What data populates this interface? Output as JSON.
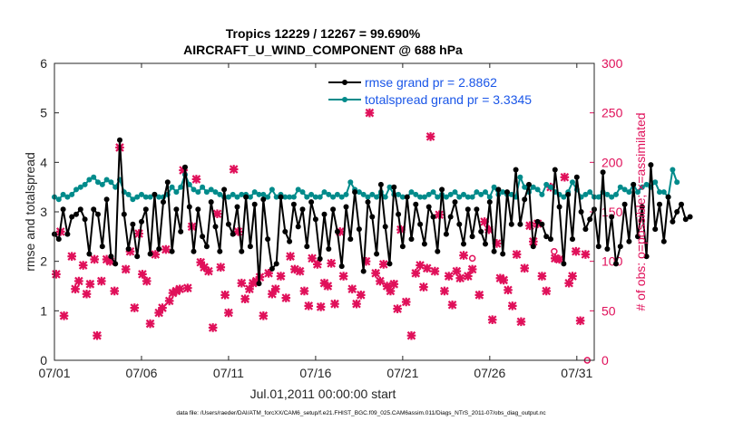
{
  "chart_data": {
    "type": "line",
    "title_line1": "Tropics 12229 / 12267 = 99.690%",
    "title_line2": "AIRCRAFT_U_WIND_COMPONENT @ 688 hPa",
    "xlabel": "Jul.01,2011 00:00:00 start",
    "ylabel_left": "rmse and totalspread",
    "ylabel_right": "# of obs: o=possible; ×=assimilated",
    "footer": "data file: /Users/raeder/DAI/ATM_forcXX/CAM6_setup/f.e21.FHIST_BGC.f09_025.CAM6assim.011/Diags_NTrS_2011-07/obs_diag_output.nc",
    "xlim": [
      1,
      32
    ],
    "ylim_left": [
      0,
      6
    ],
    "ylim_right": [
      0,
      300
    ],
    "x_ticks": [
      {
        "value": 1,
        "label": "07/01"
      },
      {
        "value": 6,
        "label": "07/06"
      },
      {
        "value": 11,
        "label": "07/11"
      },
      {
        "value": 16,
        "label": "07/16"
      },
      {
        "value": 21,
        "label": "07/21"
      },
      {
        "value": 26,
        "label": "07/26"
      },
      {
        "value": 31,
        "label": "07/31"
      }
    ],
    "y_ticks_left": [
      0,
      1,
      2,
      3,
      4,
      5,
      6
    ],
    "y_ticks_right": [
      0,
      50,
      100,
      150,
      200,
      250,
      300
    ],
    "legend_position": "top-right",
    "colors": {
      "rmse": "#000000",
      "spread": "#008b8b",
      "obs": "#e0105a",
      "legend_text": "#1a56e8"
    },
    "series": [
      {
        "name": "rmse grand pr = 2.8862",
        "axis": "left",
        "marker": "circle",
        "color": "#000000",
        "x_start": 1,
        "x_step": 0.25,
        "values": [
          2.55,
          2.45,
          3.05,
          2.55,
          2.9,
          2.95,
          3.05,
          2.85,
          2.15,
          3.05,
          2.95,
          2.3,
          3.25,
          2.1,
          1.95,
          4.45,
          2.95,
          2.25,
          2.75,
          2.1,
          2.8,
          3.05,
          2.15,
          3.35,
          2.25,
          3.2,
          3.6,
          2.2,
          3.05,
          2.6,
          3.9,
          3.1,
          2.2,
          3.05,
          2.5,
          2.3,
          3.2,
          2.7,
          2.2,
          3.45,
          2.75,
          2.55,
          3.1,
          2.2,
          3.3,
          2.3,
          3.15,
          1.55,
          3.25,
          2.45,
          1.85,
          1.95,
          3.3,
          2.6,
          2.4,
          3.15,
          2.7,
          3.05,
          2.3,
          3.2,
          2.85,
          2.05,
          2.95,
          2.25,
          3.05,
          2.6,
          1.9,
          3.1,
          2.45,
          3.4,
          2.65,
          1.8,
          3.2,
          2.9,
          2.15,
          3.55,
          2.7,
          1.95,
          3.5,
          2.95,
          2.3,
          3.3,
          2.45,
          3.15,
          2.75,
          2.35,
          3.1,
          2.9,
          2.2,
          3.45,
          2.55,
          2.9,
          3.2,
          2.75,
          2.35,
          3.05,
          2.5,
          3.05,
          2.6,
          2.35,
          3.2,
          2.2,
          3.45,
          2.15,
          3.4,
          2.75,
          3.85,
          2.75,
          3.25,
          3.55,
          2.3,
          2.8,
          2.75,
          2.5,
          2.45,
          3.85,
          3.1,
          1.95,
          3.35,
          2.45,
          3.7,
          3.0,
          2.65,
          2.85,
          3.05,
          2.3,
          3.8,
          2.25,
          2.9,
          1.95,
          2.3,
          3.15,
          2.4,
          3.55,
          2.5,
          3.1,
          2.1,
          3.95,
          2.65,
          3.15,
          2.4,
          3.3,
          2.8,
          3.0,
          3.15,
          2.85,
          2.9
        ]
      },
      {
        "name": "totalspread grand pr = 3.3345",
        "axis": "left",
        "marker": "circle",
        "color": "#008b8b",
        "x_start": 1,
        "x_step": 0.25,
        "values": [
          3.3,
          3.25,
          3.35,
          3.3,
          3.35,
          3.45,
          3.5,
          3.55,
          3.65,
          3.7,
          3.6,
          3.55,
          3.65,
          3.6,
          3.5,
          3.65,
          3.4,
          3.35,
          3.25,
          3.3,
          3.35,
          3.3,
          3.3,
          3.35,
          3.3,
          3.3,
          3.35,
          3.5,
          3.4,
          3.5,
          3.75,
          3.55,
          3.45,
          3.4,
          3.5,
          3.4,
          3.45,
          3.4,
          3.35,
          3.3,
          3.3,
          3.35,
          3.3,
          3.35,
          3.35,
          3.3,
          3.4,
          3.35,
          3.35,
          3.3,
          3.45,
          3.3,
          3.35,
          3.3,
          3.3,
          3.3,
          3.45,
          3.4,
          3.3,
          3.35,
          3.3,
          3.3,
          3.4,
          3.35,
          3.3,
          3.35,
          3.3,
          3.35,
          3.6,
          3.45,
          3.4,
          3.35,
          3.3,
          3.35,
          3.3,
          3.4,
          3.3,
          3.5,
          3.35,
          3.35,
          3.3,
          3.3,
          3.4,
          3.35,
          3.3,
          3.3,
          3.35,
          3.4,
          3.3,
          3.35,
          3.3,
          3.35,
          3.4,
          3.3,
          3.35,
          3.3,
          3.3,
          3.4,
          3.35,
          3.4,
          3.3,
          3.5,
          3.35,
          3.4,
          3.35,
          3.35,
          3.3,
          3.7,
          3.5,
          3.4,
          3.5,
          3.45,
          3.35,
          3.55,
          3.5,
          3.4,
          3.35,
          3.3,
          3.4,
          3.6,
          3.45,
          3.3,
          3.35,
          3.4,
          3.3,
          3.3,
          3.4,
          3.35,
          3.3,
          3.35,
          3.5,
          3.45,
          3.4,
          3.55,
          3.4,
          3.5,
          3.55,
          3.5,
          3.6,
          3.4,
          3.4,
          3.3,
          3.85,
          3.6
        ]
      },
      {
        "name": "obs assimilated",
        "axis": "right",
        "marker": "x",
        "color": "#e0105a",
        "points": [
          [
            1.1,
            87
          ],
          [
            1.35,
            130
          ],
          [
            1.55,
            45
          ],
          [
            2.0,
            105
          ],
          [
            2.2,
            72
          ],
          [
            2.4,
            80
          ],
          [
            2.65,
            96
          ],
          [
            2.85,
            67
          ],
          [
            3.05,
            77
          ],
          [
            3.3,
            102
          ],
          [
            3.45,
            25
          ],
          [
            3.7,
            80
          ],
          [
            4.0,
            102
          ],
          [
            4.2,
            100
          ],
          [
            4.45,
            70
          ],
          [
            4.75,
            215
          ],
          [
            5.1,
            92
          ],
          [
            5.35,
            110
          ],
          [
            5.6,
            53
          ],
          [
            5.85,
            128
          ],
          [
            6.05,
            87
          ],
          [
            6.3,
            80
          ],
          [
            6.5,
            37
          ],
          [
            6.8,
            107
          ],
          [
            7.0,
            48
          ],
          [
            7.2,
            53
          ],
          [
            7.4,
            112
          ],
          [
            7.6,
            60
          ],
          [
            7.8,
            68
          ],
          [
            8.0,
            70
          ],
          [
            8.2,
            72
          ],
          [
            8.4,
            192
          ],
          [
            8.65,
            73
          ],
          [
            8.9,
            135
          ],
          [
            9.15,
            183
          ],
          [
            9.4,
            99
          ],
          [
            9.6,
            94
          ],
          [
            9.85,
            90
          ],
          [
            10.1,
            33
          ],
          [
            10.35,
            148
          ],
          [
            10.55,
            94
          ],
          [
            10.8,
            66
          ],
          [
            11.0,
            48
          ],
          [
            11.3,
            193
          ],
          [
            11.55,
            130
          ],
          [
            11.75,
            78
          ],
          [
            11.95,
            62
          ],
          [
            12.2,
            72
          ],
          [
            12.4,
            78
          ],
          [
            12.6,
            80
          ],
          [
            12.8,
            84
          ],
          [
            13.0,
            45
          ],
          [
            13.3,
            88
          ],
          [
            13.5,
            67
          ],
          [
            13.7,
            72
          ],
          [
            14.0,
            85
          ],
          [
            14.3,
            63
          ],
          [
            14.55,
            105
          ],
          [
            14.8,
            92
          ],
          [
            15.1,
            90
          ],
          [
            15.35,
            70
          ],
          [
            15.6,
            55
          ],
          [
            15.8,
            103
          ],
          [
            16.1,
            97
          ],
          [
            16.3,
            54
          ],
          [
            16.5,
            78
          ],
          [
            16.7,
            75
          ],
          [
            16.9,
            98
          ],
          [
            17.1,
            57
          ],
          [
            17.4,
            130
          ],
          [
            17.6,
            85
          ],
          [
            18.1,
            72
          ],
          [
            18.35,
            57
          ],
          [
            18.6,
            66
          ],
          [
            18.9,
            100
          ],
          [
            19.1,
            250
          ],
          [
            19.45,
            88
          ],
          [
            19.7,
            80
          ],
          [
            19.9,
            97
          ],
          [
            20.1,
            75
          ],
          [
            20.3,
            70
          ],
          [
            20.5,
            77
          ],
          [
            20.7,
            52
          ],
          [
            20.9,
            132
          ],
          [
            21.2,
            59
          ],
          [
            21.5,
            25
          ],
          [
            21.75,
            88
          ],
          [
            22.0,
            96
          ],
          [
            22.2,
            74
          ],
          [
            22.4,
            93
          ],
          [
            22.6,
            226
          ],
          [
            22.85,
            90
          ],
          [
            23.1,
            147
          ],
          [
            23.4,
            70
          ],
          [
            23.65,
            85
          ],
          [
            23.85,
            56
          ],
          [
            24.1,
            90
          ],
          [
            24.3,
            83
          ],
          [
            24.5,
            106
          ],
          [
            24.75,
            85
          ],
          [
            25.0,
            92
          ],
          [
            25.4,
            66
          ],
          [
            25.7,
            140
          ],
          [
            25.95,
            132
          ],
          [
            26.15,
            41
          ],
          [
            26.4,
            118
          ],
          [
            26.6,
            83
          ],
          [
            26.8,
            81
          ],
          [
            27.05,
            71
          ],
          [
            27.3,
            55
          ],
          [
            27.55,
            107
          ],
          [
            27.8,
            39
          ],
          [
            28.0,
            93
          ],
          [
            28.3,
            136
          ],
          [
            28.5,
            120
          ],
          [
            28.75,
            138
          ],
          [
            29.0,
            85
          ],
          [
            29.25,
            70
          ],
          [
            29.5,
            175
          ],
          [
            29.75,
            103
          ],
          [
            30.0,
            102
          ],
          [
            30.3,
            185
          ],
          [
            30.55,
            78
          ],
          [
            30.75,
            85
          ],
          [
            30.95,
            110
          ],
          [
            31.2,
            40
          ],
          [
            31.5,
            107
          ]
        ]
      },
      {
        "name": "obs possible",
        "axis": "right",
        "marker": "o",
        "color": "#e0105a",
        "points": [
          [
            25.0,
            103
          ],
          [
            29.7,
            110
          ],
          [
            31.6,
            0
          ]
        ]
      }
    ]
  }
}
